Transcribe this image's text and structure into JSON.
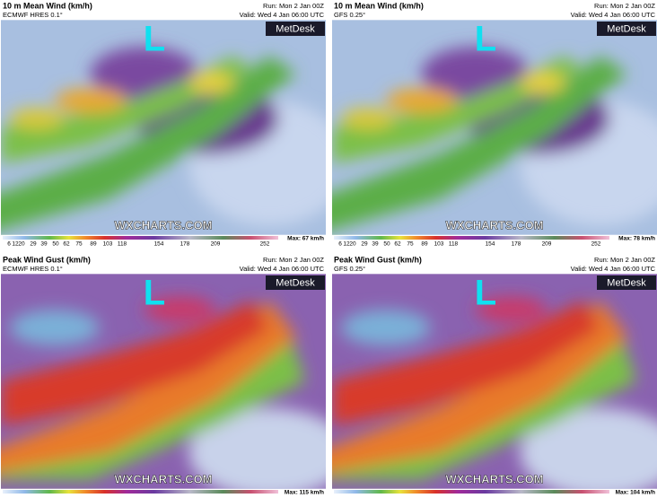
{
  "panels": [
    {
      "title": "10 m Mean Wind (km/h)",
      "model": "ECMWF HRES 0.1°",
      "run": "Run: Mon 2 Jan 00Z",
      "valid": "Valid: Wed 4 Jan 06:00 UTC",
      "brand": "MetDesk",
      "low": "L",
      "watermark": "WXCHARTS.COM",
      "scale": [
        "6",
        "12",
        "20",
        "29",
        "39",
        "50",
        "62",
        "75",
        "89",
        "103",
        "118",
        "154",
        "178",
        "209",
        "252"
      ],
      "max": "Max: 67 km/h"
    },
    {
      "title": "10 m Mean Wind (km/h)",
      "model": "GFS 0.25°",
      "run": "Run: Mon 2 Jan 00Z",
      "valid": "Valid: Wed 4 Jan 06:00 UTC",
      "brand": "MetDesk",
      "low": "L",
      "watermark": "WXCHARTS.COM",
      "scale": [
        "6",
        "12",
        "20",
        "29",
        "39",
        "50",
        "62",
        "75",
        "89",
        "103",
        "118",
        "154",
        "178",
        "209",
        "252"
      ],
      "max": "Max: 78 km/h"
    },
    {
      "title": "Peak Wind Gust (km/h)",
      "model": "ECMWF HRES 0.1°",
      "run": "Run: Mon 2 Jan 00Z",
      "valid": "Valid: Wed 4 Jan 06:00 UTC",
      "brand": "MetDesk",
      "low": "L",
      "watermark": "WXCHARTS.COM",
      "max": "Max: 115 km/h"
    },
    {
      "title": "Peak Wind Gust (km/h)",
      "model": "GFS 0.25°",
      "run": "Run: Mon 2 Jan 00Z",
      "valid": "Valid: Wed 4 Jan 06:00 UTC",
      "brand": "MetDesk",
      "low": "L",
      "watermark": "WXCHARTS.COM",
      "max": "Max: 104 km/h"
    }
  ]
}
